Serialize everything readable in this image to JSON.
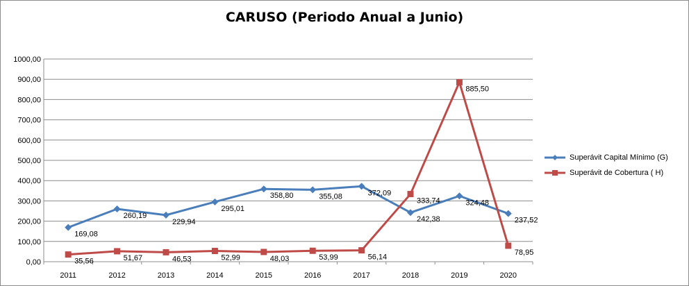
{
  "chart_data": {
    "type": "line",
    "title": "CARUSO (Periodo Anual a Junio)",
    "xlabel": "",
    "ylabel": "",
    "categories": [
      "2011",
      "2012",
      "2013",
      "2014",
      "2015",
      "2016",
      "2017",
      "2018",
      "2019",
      "2020"
    ],
    "ylim": [
      0,
      1000
    ],
    "yticks": [
      "0,00",
      "100,00",
      "200,00",
      "300,00",
      "400,00",
      "500,00",
      "600,00",
      "700,00",
      "800,00",
      "900,00",
      "1000,00"
    ],
    "grid": true,
    "legend_position": "right",
    "series": [
      {
        "name": "Superávit Capital Mínimo  (G)",
        "color": "#4a7ebb",
        "marker": "diamond",
        "values": [
          169.08,
          260.19,
          229.94,
          295.01,
          358.8,
          355.08,
          372.09,
          242.38,
          324.48,
          237.52
        ],
        "labels": [
          "169,08",
          "260,19",
          "229,94",
          "295,01",
          "358,80",
          "355,08",
          "372,09",
          "242,38",
          "324,48",
          "237,52"
        ]
      },
      {
        "name": "Superávit de Cobertura ( H)",
        "color": "#be4b48",
        "marker": "square",
        "values": [
          35.56,
          51.67,
          46.53,
          52.99,
          48.03,
          53.99,
          56.14,
          333.74,
          885.5,
          78.95
        ],
        "labels": [
          "35,56",
          "51,67",
          "46,53",
          "52,99",
          "48,03",
          "53,99",
          "56,14",
          "333,74",
          "885,50",
          "78,95"
        ]
      }
    ]
  }
}
